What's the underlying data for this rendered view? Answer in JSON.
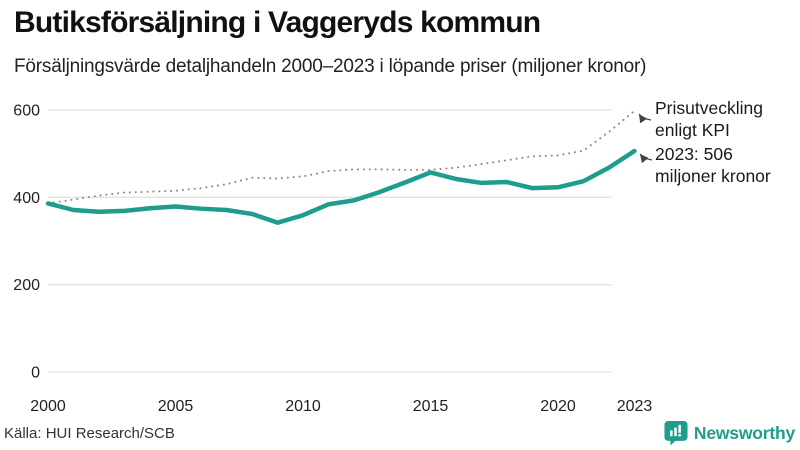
{
  "header": {
    "title": "Butiksförsäljning i Vaggeryds kommun",
    "subtitle": "Försäljningsvärde detaljhandeln 2000–2023 i löpande priser (miljoner kronor)"
  },
  "chart_data": {
    "type": "line",
    "title": "Butiksförsäljning i Vaggeryds kommun",
    "subtitle": "Försäljningsvärde detaljhandeln 2000–2023 i löpande priser (miljoner kronor)",
    "x": [
      2000,
      2001,
      2002,
      2003,
      2004,
      2005,
      2006,
      2007,
      2008,
      2009,
      2010,
      2011,
      2012,
      2013,
      2014,
      2015,
      2016,
      2017,
      2018,
      2019,
      2020,
      2021,
      2022,
      2023
    ],
    "series": [
      {
        "name": "Försäljningsvärde detaljhandeln, löpande priser (miljoner kronor)",
        "style": "solid",
        "color": "#1e9c8c",
        "values": [
          386,
          371,
          367,
          369,
          375,
          379,
          374,
          371,
          362,
          342,
          359,
          384,
          393,
          412,
          434,
          457,
          442,
          433,
          435,
          421,
          423,
          437,
          468,
          506
        ]
      },
      {
        "name": "Prisutveckling enligt KPI",
        "style": "dotted",
        "color": "#8a8a8a",
        "values": [
          386,
          395,
          404,
          411,
          413,
          415,
          421,
          430,
          445,
          443,
          448,
          460,
          464,
          464,
          463,
          463,
          468,
          476,
          485,
          494,
          496,
          507,
          550,
          598
        ]
      }
    ],
    "ylim": [
      0,
      600
    ],
    "yticks": [
      0,
      200,
      400,
      600
    ],
    "xticks": [
      2000,
      2005,
      2010,
      2015,
      2020,
      2023
    ],
    "grid": true,
    "legend": "none",
    "annotations": [
      {
        "text": "Prisutveckling\nenligt KPI",
        "series": "Prisutveckling enligt KPI",
        "x": 2023,
        "y": 598
      },
      {
        "text": "2023: 506\nmiljoner kronor",
        "series": "Försäljningsvärde detaljhandeln, löpande priser (miljoner kronor)",
        "x": 2023,
        "y": 506
      }
    ]
  },
  "annotations": {
    "kpi": "Prisutveckling\nenligt KPI",
    "value2023": "2023: 506\nmiljoner kronor"
  },
  "footer": {
    "source": "Källa: HUI Research/SCB",
    "brand": "Newsworthy"
  },
  "colors": {
    "line": "#1e9c8c",
    "kpi_dots": "#8a8a8a",
    "grid": "#e2e2e2",
    "brand": "#1e9c8c"
  }
}
